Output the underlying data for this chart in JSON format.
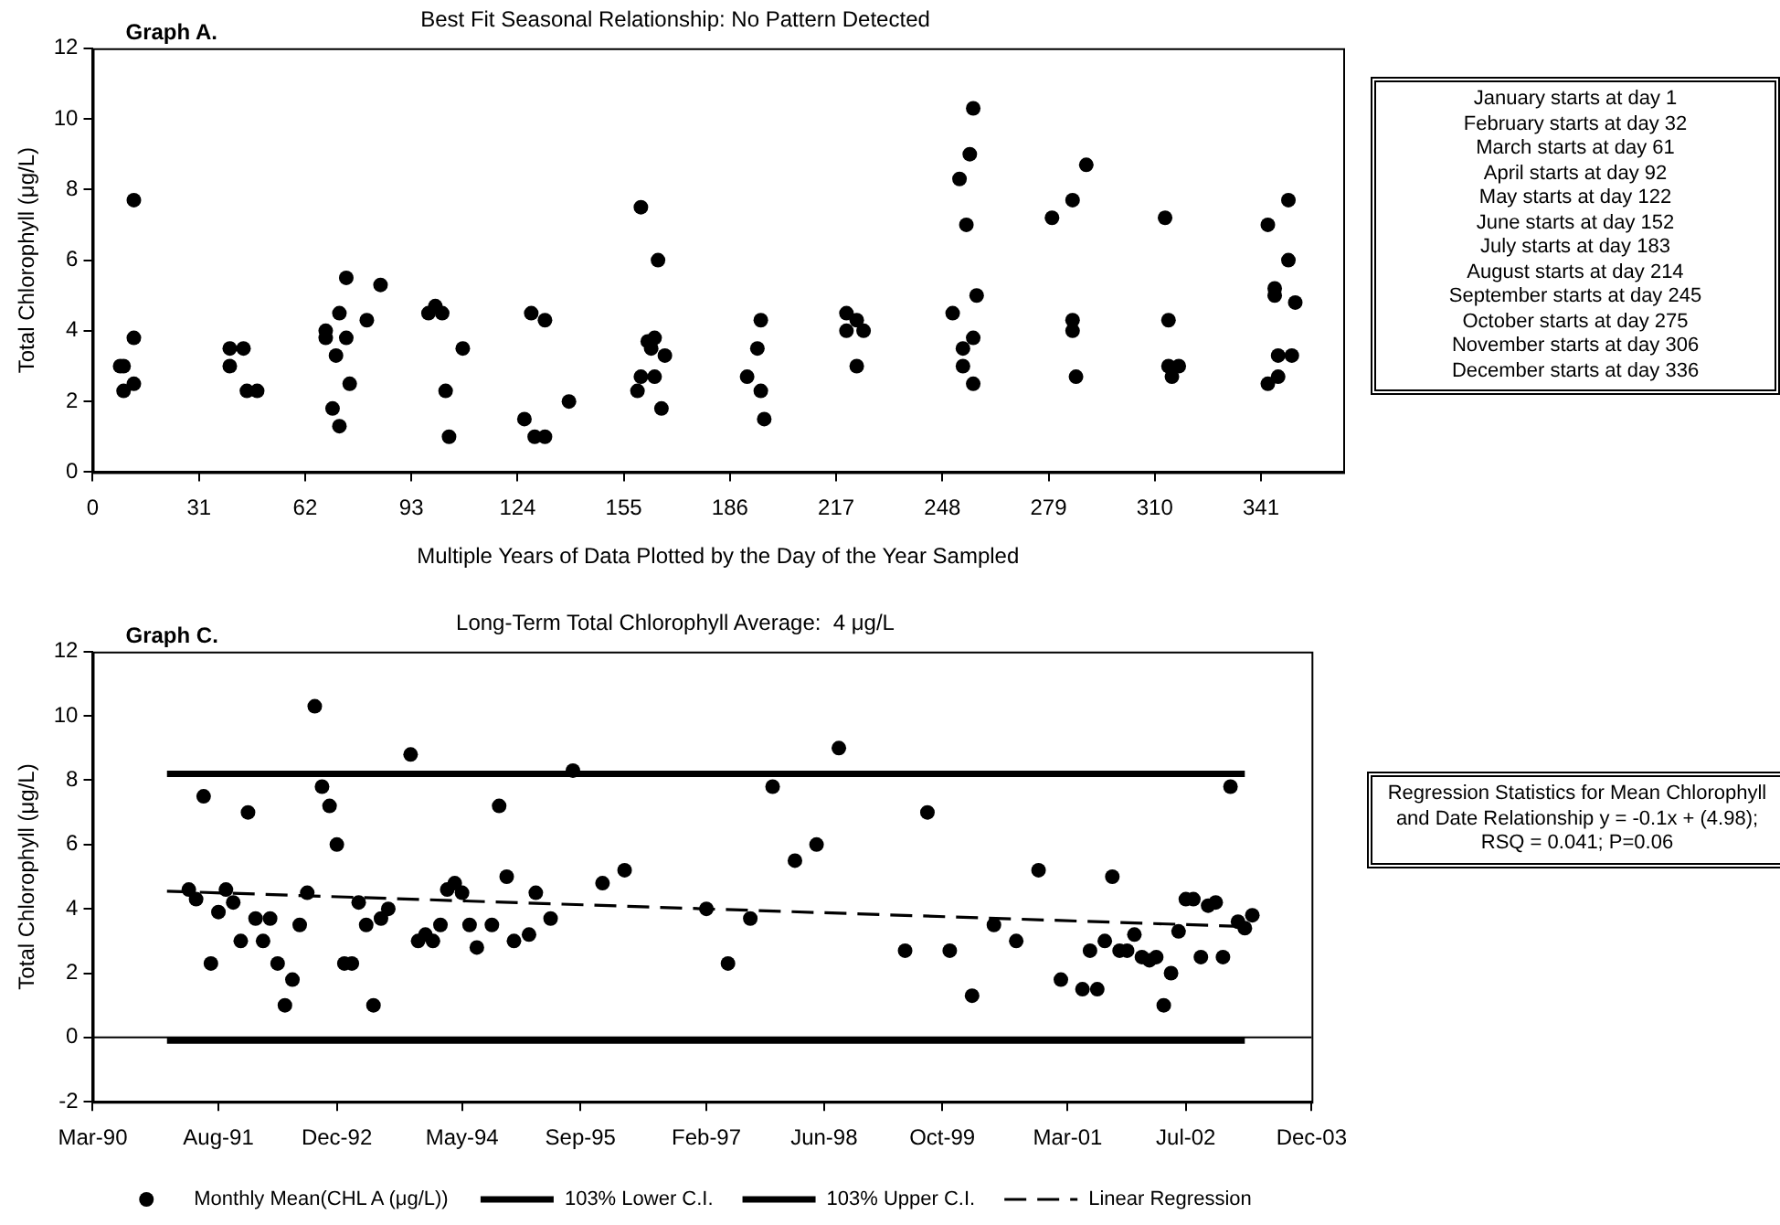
{
  "chart_data": [
    {
      "type": "scatter",
      "title": "Best Fit Seasonal Relationship: No Pattern Detected",
      "xlabel": "Multiple Years of Data Plotted by the Day of the Year Sampled",
      "ylabel": "Total Chlorophyll (μg/L)",
      "annotations": [
        "Graph A.",
        "January starts at day 1",
        "February starts at day 32",
        "March starts at day 61",
        "April starts at day 92",
        "May starts at day 122",
        "June starts at  day 152",
        "July starts at day 183",
        "August starts at day 214",
        "September starts at day 245",
        "October starts at day 275",
        "November starts at day 306",
        "December starts at day 336"
      ],
      "xlim": [
        0,
        365
      ],
      "xticks": [
        0,
        31,
        62,
        93,
        124,
        155,
        186,
        217,
        248,
        279,
        310,
        341
      ],
      "ylim": [
        0,
        12
      ],
      "yticks": [
        0,
        2,
        4,
        6,
        8,
        10,
        12
      ],
      "grid": false,
      "marker": "circle",
      "series": [
        {
          "color": "#000000",
          "x": [
            8,
            9,
            9,
            12,
            12,
            12,
            40,
            40,
            44,
            45,
            48,
            68,
            68,
            71,
            70,
            72,
            72,
            74,
            74,
            75,
            80,
            84,
            100,
            98,
            102,
            108,
            103,
            104,
            128,
            132,
            126,
            129,
            132,
            139,
            160,
            165,
            162,
            164,
            163,
            167,
            160,
            164,
            159,
            166,
            191,
            194,
            195,
            195,
            196,
            220,
            223,
            220,
            225,
            223,
            251,
            254,
            254,
            257,
            257,
            253,
            256,
            257,
            255,
            258,
            280,
            286,
            290,
            286,
            286,
            287,
            313,
            314,
            314,
            317,
            315,
            343,
            349,
            349,
            345,
            345,
            351,
            346,
            350,
            346,
            343
          ],
          "values": [
            3.0,
            3.0,
            2.3,
            7.7,
            3.8,
            2.5,
            3.5,
            3.0,
            3.5,
            2.3,
            2.3,
            4.0,
            3.8,
            3.3,
            1.8,
            1.3,
            4.5,
            5.5,
            3.8,
            2.5,
            4.3,
            5.3,
            4.7,
            4.5,
            4.5,
            3.5,
            2.3,
            1.0,
            4.5,
            4.3,
            1.5,
            1.0,
            1.0,
            2.0,
            7.5,
            6.0,
            3.7,
            3.8,
            3.5,
            3.3,
            2.7,
            2.7,
            2.3,
            1.8,
            2.7,
            3.5,
            4.3,
            2.3,
            1.5,
            4.5,
            4.3,
            4.0,
            4.0,
            3.0,
            4.5,
            3.5,
            3.0,
            2.5,
            3.8,
            8.3,
            9.0,
            10.3,
            7.0,
            5.0,
            7.2,
            7.7,
            8.7,
            4.3,
            4.0,
            2.7,
            7.2,
            4.3,
            3.0,
            3.0,
            2.7,
            7.0,
            7.7,
            6.0,
            5.2,
            5.0,
            4.8,
            3.3,
            3.3,
            2.7,
            2.5
          ]
        }
      ]
    },
    {
      "type": "scatter",
      "title": "Long-Term Total Chlorophyll Average:  4 μg/L",
      "ylabel": "Total Chlorophyll (μg/L)",
      "annotations": [
        "Graph C.",
        "Regression Statistics for Mean Chlorophyll and Date Relationship y = -0.1x + (4.98); RSQ = 0.041; P=0.06"
      ],
      "xlim": [
        "1990-03",
        "2003-12"
      ],
      "xticks": [
        {
          "value": "1990-03",
          "label": "Mar-90"
        },
        {
          "value": "1991-08",
          "label": "Aug-91"
        },
        {
          "value": "1992-12",
          "label": "Dec-92"
        },
        {
          "value": "1994-05",
          "label": "May-94"
        },
        {
          "value": "1995-09",
          "label": "Sep-95"
        },
        {
          "value": "1997-02",
          "label": "Feb-97"
        },
        {
          "value": "1998-06",
          "label": "Jun-98"
        },
        {
          "value": "1999-10",
          "label": "Oct-99"
        },
        {
          "value": "2001-03",
          "label": "Mar-01"
        },
        {
          "value": "2002-07",
          "label": "Jul-02"
        },
        {
          "value": "2003-12",
          "label": "Dec-03"
        }
      ],
      "ylim": [
        -2,
        12
      ],
      "yticks": [
        -2,
        0,
        2,
        4,
        6,
        8,
        10,
        12
      ],
      "grid": false,
      "legend": "bottom",
      "ref_lines": [
        {
          "axis": "y",
          "value": 0
        }
      ],
      "series": [
        {
          "name": "Monthly Mean(CHL A (μg/L))",
          "color": "#000000",
          "marker": "circle",
          "x": [
            "1991-04",
            "1991-05",
            "1991-06",
            "1991-07",
            "1991-08",
            "1991-09",
            "1991-10",
            "1991-11",
            "1991-12",
            "1992-01",
            "1992-02",
            "1992-03",
            "1992-04",
            "1992-05",
            "1992-06",
            "1992-07",
            "1992-08",
            "1992-09",
            "1992-10",
            "1992-11",
            "1992-12",
            "1993-01",
            "1993-02",
            "1993-03",
            "1993-04",
            "1993-05",
            "1993-06",
            "1993-07",
            "1993-10",
            "1993-11",
            "1993-12",
            "1994-01",
            "1994-02",
            "1994-03",
            "1994-04",
            "1994-05",
            "1994-06",
            "1994-07",
            "1994-09",
            "1994-10",
            "1994-11",
            "1994-12",
            "1995-02",
            "1995-03",
            "1995-05",
            "1995-08",
            "1995-12",
            "1996-03",
            "1997-02",
            "1997-05",
            "1997-08",
            "1997-11",
            "1998-02",
            "1998-05",
            "1998-08",
            "1999-05",
            "1999-08",
            "1999-11",
            "2000-02",
            "2000-05",
            "2000-08",
            "2000-11",
            "2001-02",
            "2001-05",
            "2001-06",
            "2001-07",
            "2001-08",
            "2001-09",
            "2001-10",
            "2001-11",
            "2001-12",
            "2002-01",
            "2002-02",
            "2002-03",
            "2002-04",
            "2002-05",
            "2002-06",
            "2002-07",
            "2002-08",
            "2002-09",
            "2002-10",
            "2002-11",
            "2002-12",
            "2003-01",
            "2003-02",
            "2003-03",
            "2003-04"
          ],
          "values": [
            4.6,
            4.3,
            7.5,
            2.3,
            3.9,
            4.6,
            4.2,
            3.0,
            7.0,
            3.7,
            3.0,
            3.7,
            2.3,
            1.0,
            1.8,
            3.5,
            4.5,
            10.3,
            7.8,
            7.2,
            6.0,
            2.3,
            2.3,
            4.2,
            3.5,
            1.0,
            3.7,
            4.0,
            8.8,
            3.0,
            3.2,
            3.0,
            3.5,
            4.6,
            4.8,
            4.5,
            3.5,
            2.8,
            3.5,
            7.2,
            5.0,
            3.0,
            3.2,
            4.5,
            3.7,
            8.3,
            4.8,
            5.2,
            4.0,
            2.3,
            3.7,
            7.8,
            5.5,
            6.0,
            9.0,
            2.7,
            7.0,
            2.7,
            1.3,
            3.5,
            3.0,
            5.2,
            1.8,
            1.5,
            2.7,
            1.5,
            3.0,
            5.0,
            2.7,
            2.7,
            3.2,
            2.5,
            2.4,
            2.5,
            1.0,
            2.0,
            3.3,
            4.3,
            4.3,
            2.5,
            4.1,
            4.2,
            2.5,
            7.8,
            3.6,
            3.4,
            3.8
          ]
        },
        {
          "name": "103% Lower C.I.",
          "type": "line",
          "color": "#000000",
          "marker": "none",
          "line_style": "solid",
          "x": [
            "1991-01",
            "2003-03"
          ],
          "values": [
            -0.1,
            -0.1
          ]
        },
        {
          "name": "103% Upper C.I.",
          "type": "line",
          "color": "#000000",
          "marker": "none",
          "line_style": "solid",
          "x": [
            "1991-01",
            "2003-03"
          ],
          "values": [
            8.2,
            8.2
          ]
        },
        {
          "name": "Linear Regression",
          "type": "line",
          "color": "#000000",
          "marker": "none",
          "line_style": "dashed",
          "x": [
            "1991-01",
            "2003-03"
          ],
          "values": [
            4.55,
            3.45
          ]
        }
      ]
    }
  ]
}
